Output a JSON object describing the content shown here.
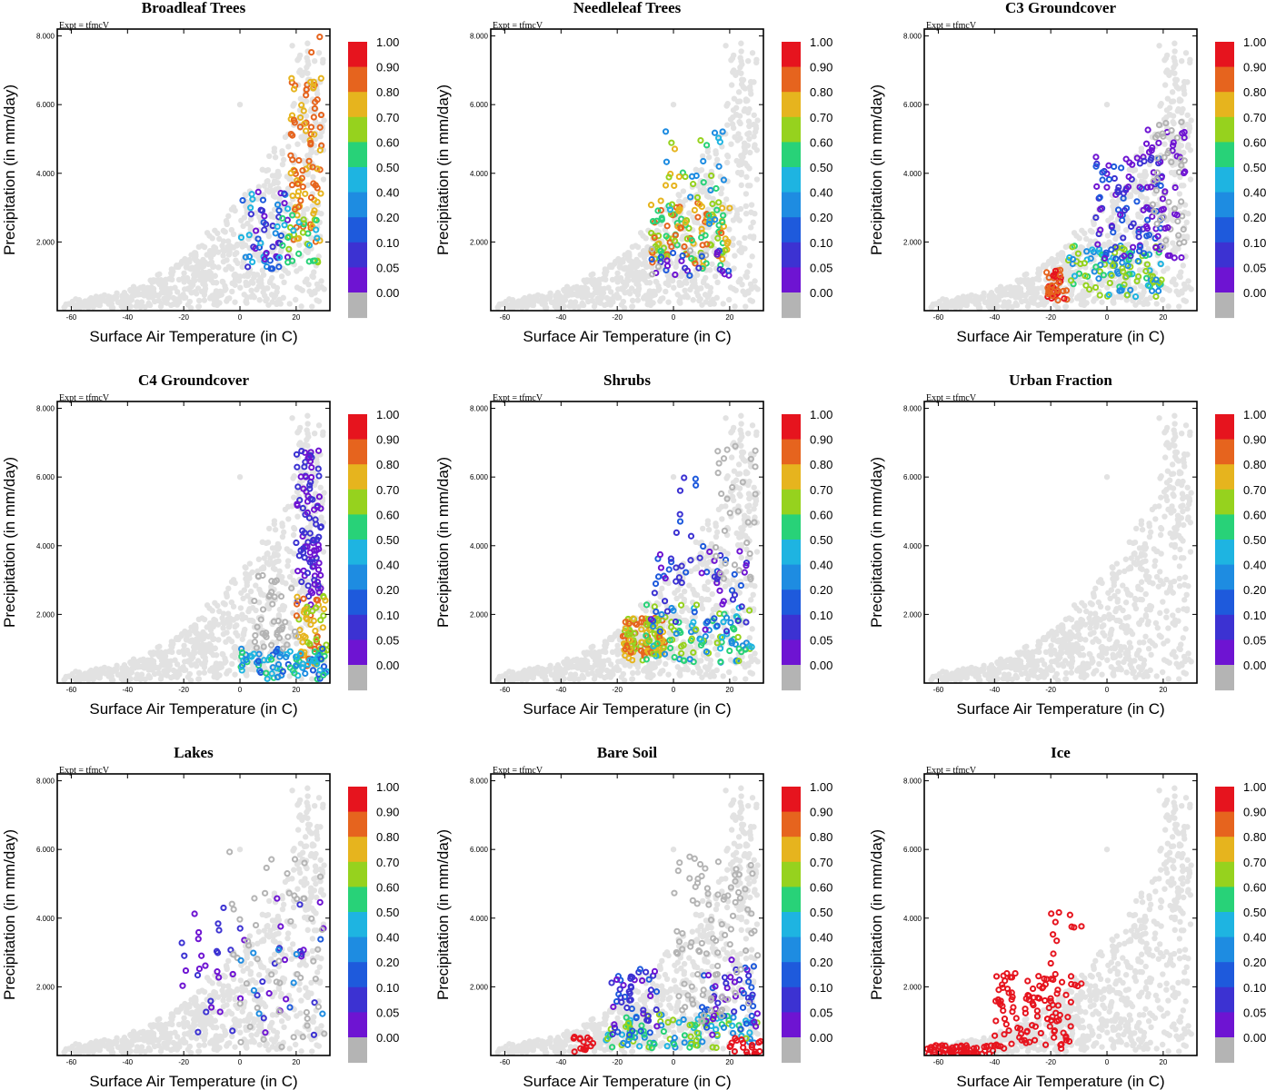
{
  "chart_data": {
    "type": "scatter",
    "experiment_label": "Expt = tfmcV",
    "xlabel": "Surface Air Temperature (in C)",
    "ylabel": "Precipitation (in mm/day)",
    "xlim": [
      -65,
      32
    ],
    "ylim": [
      0,
      8.2
    ],
    "x_ticks": [
      -60,
      -40,
      -20,
      0,
      20
    ],
    "y_ticks": [
      2.0,
      4.0,
      6.0,
      8.0
    ],
    "y_tick_labels": [
      "2.000",
      "4.000",
      "6.000",
      "8.000"
    ],
    "background_point_color": "#e2e2e2",
    "zero_point_color": "#b4b4b4",
    "colorbar": {
      "levels": [
        "1.00",
        "0.90",
        "0.80",
        "0.70",
        "0.60",
        "0.50",
        "0.40",
        "0.20",
        "0.10",
        "0.05",
        "0.00"
      ],
      "colors": [
        "#e6141e",
        "#e6641e",
        "#e6b41e",
        "#96d21e",
        "#28d278",
        "#1eb4e1",
        "#1e8ce1",
        "#1e5adc",
        "#3c32d2",
        "#6e14d2",
        "#b4b4b4"
      ]
    },
    "panels": [
      {
        "title": "Broadleaf Trees",
        "clusters": [
          {
            "x": [
              18,
              29
            ],
            "y": [
              2.0,
              6.8
            ],
            "n": 90,
            "bins": [
              1,
              2
            ]
          },
          {
            "x": [
              0,
              18
            ],
            "y": [
              1.2,
              3.5
            ],
            "n": 55,
            "bins": [
              5,
              6,
              7,
              8,
              9
            ]
          },
          {
            "x": [
              15,
              28
            ],
            "y": [
              1.4,
              2.8
            ],
            "n": 30,
            "bins": [
              3,
              4,
              5
            ]
          },
          {
            "x": [
              24,
              29
            ],
            "y": [
              6.5,
              8.1
            ],
            "n": 4,
            "bins": [
              1,
              2
            ]
          }
        ]
      },
      {
        "title": "Needleleaf Trees",
        "clusters": [
          {
            "x": [
              -8,
              20
            ],
            "y": [
              1.2,
              3.2
            ],
            "n": 120,
            "bins": [
              1,
              2,
              3,
              4
            ]
          },
          {
            "x": [
              -3,
              18
            ],
            "y": [
              2.5,
              5.4
            ],
            "n": 40,
            "bins": [
              2,
              3,
              4,
              5,
              6
            ]
          },
          {
            "x": [
              -8,
              20
            ],
            "y": [
              1.0,
              1.8
            ],
            "n": 30,
            "bins": [
              7,
              8,
              9,
              10
            ]
          }
        ]
      },
      {
        "title": "C3 Groundcover",
        "clusters": [
          {
            "x": [
              -22,
              -14
            ],
            "y": [
              0.3,
              1.2
            ],
            "n": 40,
            "bins": [
              0,
              1
            ]
          },
          {
            "x": [
              -14,
              20
            ],
            "y": [
              0.4,
              1.9
            ],
            "n": 110,
            "bins": [
              3,
              4,
              5,
              6
            ]
          },
          {
            "x": [
              -5,
              20
            ],
            "y": [
              1.5,
              4.5
            ],
            "n": 100,
            "bins": [
              7,
              8,
              9
            ]
          },
          {
            "x": [
              14,
              28
            ],
            "y": [
              1.5,
              5.5
            ],
            "n": 80,
            "bins": [
              9,
              10
            ]
          }
        ]
      },
      {
        "title": "C4 Groundcover",
        "clusters": [
          {
            "x": [
              20,
              29
            ],
            "y": [
              2.2,
              6.8
            ],
            "n": 100,
            "bins": [
              8,
              9
            ]
          },
          {
            "x": [
              20,
              31
            ],
            "y": [
              0.5,
              2.6
            ],
            "n": 60,
            "bins": [
              1,
              2,
              3
            ]
          },
          {
            "x": [
              0,
              31
            ],
            "y": [
              0.1,
              1.0
            ],
            "n": 90,
            "bins": [
              4,
              5,
              6,
              7
            ]
          },
          {
            "x": [
              5,
              20
            ],
            "y": [
              1.0,
              3.2
            ],
            "n": 40,
            "bins": [
              10
            ]
          }
        ]
      },
      {
        "title": "Shrubs",
        "clusters": [
          {
            "x": [
              -18,
              -3
            ],
            "y": [
              0.6,
              1.9
            ],
            "n": 110,
            "bins": [
              1,
              2,
              3
            ]
          },
          {
            "x": [
              -10,
              28
            ],
            "y": [
              0.6,
              2.3
            ],
            "n": 100,
            "bins": [
              3,
              4,
              5,
              6
            ]
          },
          {
            "x": [
              -8,
              26
            ],
            "y": [
              1.5,
              4.0
            ],
            "n": 60,
            "bins": [
              7,
              8,
              9
            ]
          },
          {
            "x": [
              0,
              8
            ],
            "y": [
              4.0,
              6.0
            ],
            "n": 8,
            "bins": [
              7,
              8
            ]
          },
          {
            "x": [
              15,
              30
            ],
            "y": [
              3.0,
              7.0
            ],
            "n": 30,
            "bins": [
              10
            ]
          }
        ]
      },
      {
        "title": "Urban Fraction",
        "clusters": []
      },
      {
        "title": "Lakes",
        "clusters": [
          {
            "x": [
              -22,
              30
            ],
            "y": [
              0.6,
              4.8
            ],
            "n": 50,
            "bins": [
              8,
              9
            ]
          },
          {
            "x": [
              -5,
              30
            ],
            "y": [
              0.2,
              6.0
            ],
            "n": 50,
            "bins": [
              10
            ]
          },
          {
            "x": [
              0,
              30
            ],
            "y": [
              1.0,
              3.5
            ],
            "n": 10,
            "bins": [
              6,
              7
            ]
          }
        ]
      },
      {
        "title": "Bare Soil",
        "clusters": [
          {
            "x": [
              -36,
              -28
            ],
            "y": [
              0.1,
              0.6
            ],
            "n": 15,
            "bins": [
              0
            ]
          },
          {
            "x": [
              -24,
              30
            ],
            "y": [
              0.2,
              1.2
            ],
            "n": 110,
            "bins": [
              3,
              4,
              5,
              6
            ]
          },
          {
            "x": [
              -22,
              -5
            ],
            "y": [
              0.6,
              2.6
            ],
            "n": 50,
            "bins": [
              7,
              8,
              9
            ]
          },
          {
            "x": [
              10,
              30
            ],
            "y": [
              0.6,
              2.8
            ],
            "n": 50,
            "bins": [
              7,
              8,
              9
            ]
          },
          {
            "x": [
              0,
              30
            ],
            "y": [
              1.0,
              5.8
            ],
            "n": 90,
            "bins": [
              10
            ]
          },
          {
            "x": [
              20,
              31
            ],
            "y": [
              0.0,
              0.5
            ],
            "n": 20,
            "bins": [
              0
            ]
          }
        ]
      },
      {
        "title": "Ice",
        "clusters": [
          {
            "x": [
              -64,
              -40
            ],
            "y": [
              0.0,
              0.3
            ],
            "n": 60,
            "bins": [
              0
            ]
          },
          {
            "x": [
              -40,
              -12
            ],
            "y": [
              0.2,
              2.4
            ],
            "n": 110,
            "bins": [
              0
            ]
          },
          {
            "x": [
              -22,
              -8
            ],
            "y": [
              2.0,
              4.2
            ],
            "n": 15,
            "bins": [
              0
            ]
          }
        ]
      }
    ]
  }
}
